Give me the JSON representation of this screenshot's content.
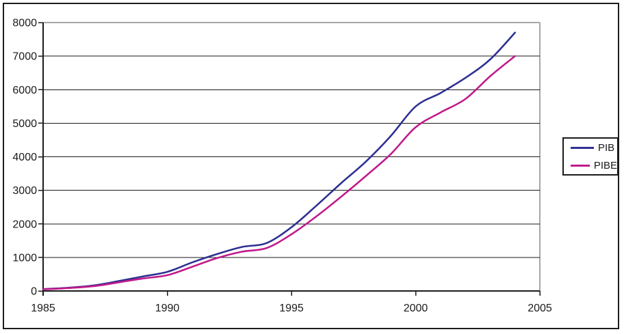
{
  "chart_data": {
    "type": "line",
    "title": "",
    "xlabel": "",
    "ylabel": "",
    "x": [
      1985,
      1986,
      1987,
      1988,
      1989,
      1990,
      1991,
      1992,
      1993,
      1994,
      1995,
      1996,
      1997,
      1998,
      1999,
      2000,
      2001,
      2002,
      2003,
      2004
    ],
    "series": [
      {
        "name": "PIB",
        "color": "#2e3192",
        "values": [
          55,
          95,
          160,
          290,
          430,
          570,
          850,
          1100,
          1310,
          1430,
          1900,
          2540,
          3215,
          3860,
          4620,
          5500,
          5900,
          6350,
          6900,
          7700
        ]
      },
      {
        "name": "PIBE",
        "color": "#c01a8c",
        "values": [
          50,
          85,
          140,
          250,
          370,
          470,
          720,
          980,
          1170,
          1280,
          1690,
          2220,
          2810,
          3430,
          4080,
          4880,
          5320,
          5720,
          6400,
          7000
        ]
      }
    ],
    "xlim": [
      1985,
      2005
    ],
    "ylim": [
      0,
      8000
    ],
    "xticks": [
      "1985",
      "1990",
      "1995",
      "2000",
      "2005"
    ],
    "yticks": [
      "0",
      "1000",
      "2000",
      "3000",
      "4000",
      "5000",
      "6000",
      "7000",
      "8000"
    ],
    "grid": "horizontal",
    "legend_position": "right-outside"
  },
  "legend": {
    "items": [
      {
        "label": "PIB",
        "color": "#2e3192"
      },
      {
        "label": "PIBE",
        "color": "#c01a8c"
      }
    ]
  },
  "colors": {
    "background": "#ffffff",
    "figure_border": "#1c1c1c",
    "plot_border": "#a6a6a6",
    "gridline": "#1a1a1a",
    "axis": "#1a1a1a",
    "label": "#1a1a1a"
  }
}
